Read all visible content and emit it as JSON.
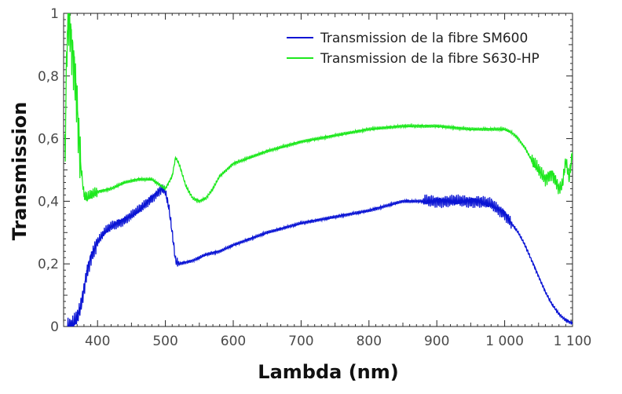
{
  "chart_data": {
    "type": "line",
    "xlabel": "Lambda (nm)",
    "ylabel": "Transmission",
    "xlim": [
      350,
      1100
    ],
    "ylim": [
      0,
      1
    ],
    "x_ticks": [
      400,
      500,
      600,
      700,
      800,
      900,
      1000,
      1100
    ],
    "x_tick_labels": [
      "400",
      "500",
      "600",
      "700",
      "800",
      "900",
      "1 000",
      "1 100"
    ],
    "y_ticks": [
      0,
      0.2,
      0.4,
      0.6,
      0.8,
      1
    ],
    "y_tick_labels": [
      "0",
      "0,2",
      "0,4",
      "0,6",
      "0,8",
      "1"
    ],
    "grid": false,
    "legend_position": "top-right",
    "series": [
      {
        "name": "Transmission de la fibre SM600",
        "color": "#0a14d4",
        "x": [
          355,
          360,
          365,
          370,
          375,
          380,
          385,
          390,
          400,
          410,
          420,
          440,
          460,
          480,
          495,
          500,
          505,
          510,
          515,
          520,
          540,
          560,
          580,
          600,
          650,
          700,
          750,
          800,
          850,
          880,
          900,
          920,
          940,
          960,
          980,
          1000,
          1010,
          1020,
          1030,
          1040,
          1050,
          1060,
          1070,
          1080,
          1090,
          1100
        ],
        "y": [
          0.0,
          0.0,
          0.01,
          0.03,
          0.06,
          0.12,
          0.18,
          0.22,
          0.27,
          0.3,
          0.32,
          0.34,
          0.37,
          0.41,
          0.44,
          0.43,
          0.38,
          0.3,
          0.21,
          0.2,
          0.21,
          0.23,
          0.24,
          0.26,
          0.3,
          0.33,
          0.35,
          0.37,
          0.4,
          0.4,
          0.4,
          0.4,
          0.4,
          0.4,
          0.39,
          0.36,
          0.33,
          0.3,
          0.26,
          0.21,
          0.16,
          0.11,
          0.07,
          0.04,
          0.02,
          0.01
        ]
      },
      {
        "name": "Transmission de la fibre S630-HP",
        "color": "#1ee81e",
        "x": [
          352,
          355,
          358,
          362,
          366,
          370,
          375,
          380,
          385,
          390,
          400,
          420,
          440,
          460,
          480,
          500,
          510,
          515,
          520,
          530,
          540,
          550,
          560,
          570,
          580,
          600,
          650,
          700,
          750,
          800,
          850,
          900,
          950,
          975,
          1000,
          1010,
          1020,
          1030,
          1040,
          1050,
          1060,
          1070,
          1080,
          1085,
          1090,
          1095,
          1100
        ],
        "y": [
          0.55,
          0.92,
          0.98,
          0.9,
          0.82,
          0.7,
          0.52,
          0.42,
          0.41,
          0.42,
          0.43,
          0.44,
          0.46,
          0.47,
          0.47,
          0.44,
          0.48,
          0.54,
          0.52,
          0.45,
          0.41,
          0.4,
          0.41,
          0.44,
          0.48,
          0.52,
          0.56,
          0.59,
          0.61,
          0.63,
          0.64,
          0.64,
          0.63,
          0.63,
          0.63,
          0.62,
          0.6,
          0.57,
          0.53,
          0.5,
          0.47,
          0.49,
          0.44,
          0.45,
          0.53,
          0.47,
          0.56
        ]
      }
    ]
  }
}
